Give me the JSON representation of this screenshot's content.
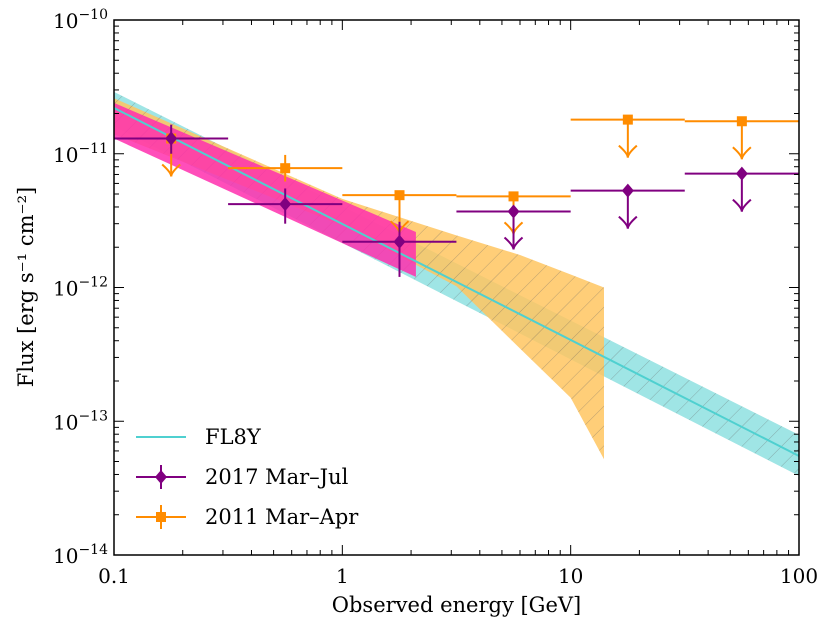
{
  "chart_data": {
    "type": "scatter",
    "title": "",
    "xlabel": "Observed energy [GeV]",
    "ylabel": "Flux [erg s⁻¹ cm⁻²]",
    "xscale": "log",
    "yscale": "log",
    "xlim": [
      0.1,
      100
    ],
    "ylim": [
      1e-14,
      1e-10
    ],
    "x_tick_labels": [
      "0.1",
      "1",
      "10",
      "100"
    ],
    "y_tick_labels": [
      {
        "base": "10",
        "exp": "−14"
      },
      {
        "base": "10",
        "exp": "−13"
      },
      {
        "base": "10",
        "exp": "−12"
      },
      {
        "base": "10",
        "exp": "−11"
      },
      {
        "base": "10",
        "exp": "−10"
      }
    ],
    "legend_position": "lower-left",
    "colors": {
      "fl8y": "#4fd0d0",
      "fl8y_band": "#7fdcdc",
      "mar_jul": "#800080",
      "mar_jul_band": "#ff2fae",
      "mar_apr": "#ff8c00",
      "mar_apr_band": "#ffc560"
    },
    "series": [
      {
        "name": "FL8Y",
        "kind": "model_band",
        "line": [
          [
            0.1,
            2.2e-11
          ],
          [
            100,
            5.5e-14
          ]
        ],
        "band_lower": [
          [
            0.1,
            1.6e-11
          ],
          [
            100,
            3.9e-14
          ]
        ],
        "band_upper": [
          [
            0.1,
            2.9e-11
          ],
          [
            100,
            7.9e-14
          ]
        ]
      },
      {
        "name": "2017 Mar–Jul",
        "kind": "points",
        "band_lower": [
          [
            0.1,
            1.3e-11
          ],
          [
            2.1,
            1.2e-12
          ]
        ],
        "band_upper": [
          [
            0.1,
            2.4e-11
          ],
          [
            2.1,
            2.6e-12
          ]
        ],
        "points": [
          {
            "x": 0.178,
            "y": 1.3e-11,
            "xerr": [
              0.1,
              0.316
            ],
            "yerr": [
              1e-11,
              1.65e-11
            ]
          },
          {
            "x": 0.562,
            "y": 4.2e-12,
            "xerr": [
              0.316,
              1.0
            ],
            "yerr": [
              3e-12,
              5.5e-12
            ]
          },
          {
            "x": 1.78,
            "y": 2.2e-12,
            "xerr": [
              1.0,
              3.16
            ],
            "yerr": [
              1.2e-12,
              3.1e-12
            ]
          }
        ],
        "upper_limits": [
          {
            "x": 5.62,
            "y": 3.7e-12,
            "xerr": [
              3.16,
              10.0
            ]
          },
          {
            "x": 17.8,
            "y": 5.3e-12,
            "xerr": [
              10.0,
              31.6
            ]
          },
          {
            "x": 56.2,
            "y": 7.1e-12,
            "xerr": [
              31.6,
              100.0
            ]
          }
        ]
      },
      {
        "name": "2011 Mar–Apr",
        "kind": "points",
        "band_lower": [
          [
            0.1,
            1.4e-11
          ],
          [
            1.0,
            2.9e-12
          ],
          [
            3.16,
            1.02e-12
          ],
          [
            6.0,
            3.5e-13
          ],
          [
            10.0,
            1.5e-13
          ],
          [
            14.0,
            5.2e-14
          ]
        ],
        "band_upper": [
          [
            0.1,
            2.6e-11
          ],
          [
            1.0,
            4.6e-12
          ],
          [
            3.16,
            2.45e-12
          ],
          [
            6.0,
            1.75e-12
          ],
          [
            10.0,
            1.25e-12
          ],
          [
            14.0,
            1e-12
          ]
        ],
        "points": [
          {
            "x": 0.562,
            "y": 7.8e-12,
            "xerr": [
              0.316,
              1.0
            ],
            "yerr": [
              6.2e-12,
              9.8e-12
            ]
          }
        ],
        "upper_limits": [
          {
            "x": 0.178,
            "y": 1.3e-11,
            "xerr": [
              0.1,
              0.316
            ]
          },
          {
            "x": 1.78,
            "y": 4.9e-12,
            "xerr": [
              1.0,
              3.16
            ]
          },
          {
            "x": 5.62,
            "y": 4.8e-12,
            "xerr": [
              3.16,
              10.0
            ]
          },
          {
            "x": 17.8,
            "y": 1.8e-11,
            "xerr": [
              10.0,
              31.6
            ]
          },
          {
            "x": 56.2,
            "y": 1.75e-11,
            "xerr": [
              31.6,
              100.0
            ]
          }
        ]
      }
    ],
    "legend": [
      {
        "label": "FL8Y",
        "marker": "line",
        "color_key": "fl8y"
      },
      {
        "label": "2017 Mar–Jul",
        "marker": "diamond",
        "color_key": "mar_jul"
      },
      {
        "label": "2011 Mar–Apr",
        "marker": "square",
        "color_key": "mar_apr"
      }
    ]
  }
}
